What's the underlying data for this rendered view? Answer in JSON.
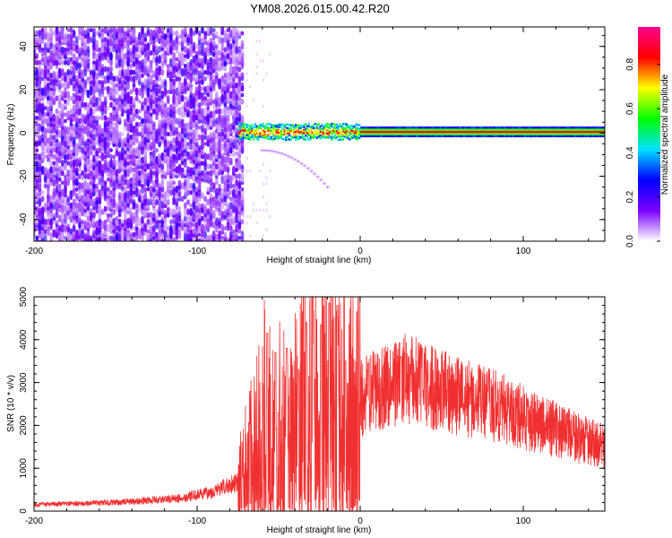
{
  "title": "YM08.2026.015.00.42.R20",
  "chart_data": [
    {
      "type": "heatmap",
      "xlabel": "Height of straight line (km)",
      "ylabel": "Frequency (Hz)",
      "xlim": [
        -200,
        150
      ],
      "ylim": [
        -50,
        49
      ],
      "xticks": [
        "-200",
        "-100",
        "0",
        "100"
      ],
      "yticks": [
        "-40",
        "-20",
        "0",
        "20",
        "40"
      ],
      "colorbar": {
        "label": "Normalized spectral amplitude",
        "range": [
          0,
          0.97
        ],
        "ticks": [
          "0.0",
          "0.2",
          "0.4",
          "0.6",
          "0.8"
        ],
        "colors": [
          "#ffffff",
          "#7b00ff",
          "#0000ff",
          "#00e0ff",
          "#00ff00",
          "#ffff00",
          "#ff0000",
          "#ff0090"
        ]
      },
      "features": {
        "noise_region_x": [
          -200,
          -72
        ],
        "carrier_freq_hz": 0.5,
        "carrier_start_x": -75,
        "drift_curve_x": [
          -60,
          -20
        ],
        "drift_curve_freq": [
          -8,
          -25
        ]
      }
    },
    {
      "type": "line",
      "xlabel": "Height of straight line (km)",
      "ylabel": "SNR (10 * v/v)",
      "xlim": [
        -200,
        150
      ],
      "ylim": [
        0,
        5000
      ],
      "xticks": [
        "-200",
        "-100",
        "0",
        "100"
      ],
      "yticks": [
        "0",
        "1000",
        "2000",
        "3000",
        "4000",
        "5000"
      ],
      "color": "#f03030",
      "envelope": {
        "x": [
          -200,
          -150,
          -110,
          -90,
          -75,
          -65,
          -58,
          -50,
          -40,
          -30,
          -20,
          -10,
          0,
          10,
          20,
          30,
          50,
          70,
          90,
          110,
          130,
          150
        ],
        "y": [
          150,
          200,
          300,
          450,
          700,
          1300,
          1900,
          1800,
          2200,
          2600,
          2700,
          2300,
          2600,
          2850,
          3000,
          3100,
          2800,
          2600,
          2350,
          2050,
          1750,
          1500
        ]
      },
      "spikes": [
        {
          "x": -57,
          "y": 4150
        },
        {
          "x": -52,
          "y": 3700
        },
        {
          "x": -45,
          "y": 3800
        },
        {
          "x": -38,
          "y": 3300
        },
        {
          "x": -33,
          "y": 4400
        },
        {
          "x": -29,
          "y": 5000
        },
        {
          "x": -24,
          "y": 4350
        },
        {
          "x": -19,
          "y": 4850
        },
        {
          "x": -14,
          "y": 4800
        },
        {
          "x": -9,
          "y": 3500
        },
        {
          "x": 5,
          "y": 3450
        },
        {
          "x": 25,
          "y": 3600
        },
        {
          "x": 38,
          "y": 3800
        }
      ]
    }
  ]
}
